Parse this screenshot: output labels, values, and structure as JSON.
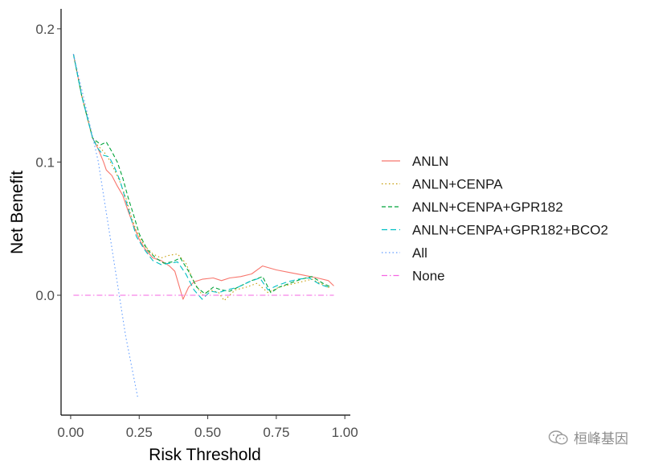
{
  "chart_data": {
    "type": "line",
    "title": "",
    "xlabel": "Risk Threshold",
    "ylabel": "Net Benefit",
    "xlim": [
      -0.035,
      1.02
    ],
    "ylim": [
      -0.09,
      0.215
    ],
    "x_ticks": [
      0.0,
      0.25,
      0.5,
      0.75,
      1.0
    ],
    "x_tick_labels": [
      "0.00",
      "0.25",
      "0.50",
      "0.75",
      "1.00"
    ],
    "y_ticks": [
      0.0,
      0.1,
      0.2
    ],
    "y_tick_labels": [
      "0.0",
      "0.1",
      "0.2"
    ],
    "grid": false,
    "legend_position": "right",
    "series": [
      {
        "name": "ANLN",
        "color": "#F8766D",
        "dash": "solid",
        "x": [
          0.01,
          0.04,
          0.08,
          0.1,
          0.12,
          0.13,
          0.15,
          0.17,
          0.19,
          0.21,
          0.23,
          0.25,
          0.27,
          0.3,
          0.33,
          0.36,
          0.38,
          0.4,
          0.41,
          0.43,
          0.45,
          0.48,
          0.52,
          0.55,
          0.58,
          0.62,
          0.66,
          0.7,
          0.75,
          0.8,
          0.85,
          0.9,
          0.94,
          0.96
        ],
        "y": [
          0.181,
          0.15,
          0.118,
          0.11,
          0.1,
          0.094,
          0.09,
          0.082,
          0.075,
          0.063,
          0.052,
          0.042,
          0.035,
          0.028,
          0.026,
          0.022,
          0.018,
          0.004,
          -0.003,
          0.006,
          0.01,
          0.012,
          0.013,
          0.011,
          0.013,
          0.014,
          0.016,
          0.022,
          0.019,
          0.017,
          0.015,
          0.013,
          0.011,
          0.007
        ]
      },
      {
        "name": "ANLN+CENPA",
        "color": "#C49A00",
        "dash": "dotted",
        "x": [
          0.01,
          0.04,
          0.08,
          0.1,
          0.12,
          0.14,
          0.16,
          0.18,
          0.2,
          0.22,
          0.24,
          0.27,
          0.3,
          0.33,
          0.36,
          0.39,
          0.42,
          0.45,
          0.48,
          0.51,
          0.54,
          0.56,
          0.6,
          0.64,
          0.68,
          0.72,
          0.76,
          0.8,
          0.84,
          0.88,
          0.92,
          0.95
        ],
        "y": [
          0.181,
          0.15,
          0.118,
          0.112,
          0.108,
          0.102,
          0.094,
          0.085,
          0.074,
          0.06,
          0.048,
          0.037,
          0.031,
          0.028,
          0.03,
          0.031,
          0.024,
          0.01,
          0.0,
          0.004,
          0.002,
          -0.004,
          0.004,
          0.006,
          0.009,
          0.002,
          0.006,
          0.008,
          0.01,
          0.012,
          0.008,
          0.005
        ]
      },
      {
        "name": "ANLN+CENPA+GPR182",
        "color": "#00A33A",
        "dash": "dashed",
        "x": [
          0.01,
          0.04,
          0.08,
          0.11,
          0.13,
          0.15,
          0.17,
          0.19,
          0.21,
          0.23,
          0.25,
          0.28,
          0.31,
          0.34,
          0.37,
          0.4,
          0.43,
          0.46,
          0.49,
          0.52,
          0.55,
          0.58,
          0.62,
          0.66,
          0.7,
          0.73,
          0.76,
          0.8,
          0.84,
          0.88,
          0.92,
          0.95
        ],
        "y": [
          0.181,
          0.15,
          0.118,
          0.113,
          0.115,
          0.108,
          0.1,
          0.088,
          0.073,
          0.06,
          0.046,
          0.034,
          0.028,
          0.024,
          0.025,
          0.028,
          0.018,
          0.006,
          0.001,
          0.006,
          0.004,
          0.003,
          0.007,
          0.011,
          0.014,
          0.002,
          0.006,
          0.009,
          0.012,
          0.014,
          0.009,
          0.006
        ]
      },
      {
        "name": "ANLN+CENPA+GPR182+BCO2",
        "color": "#00BFC4",
        "dash": "longdash",
        "x": [
          0.01,
          0.04,
          0.08,
          0.1,
          0.12,
          0.14,
          0.16,
          0.18,
          0.2,
          0.22,
          0.24,
          0.27,
          0.3,
          0.33,
          0.36,
          0.39,
          0.42,
          0.45,
          0.48,
          0.51,
          0.54,
          0.57,
          0.61,
          0.65,
          0.69,
          0.72,
          0.75,
          0.79,
          0.83,
          0.87,
          0.91,
          0.94
        ],
        "y": [
          0.181,
          0.15,
          0.118,
          0.11,
          0.105,
          0.104,
          0.096,
          0.086,
          0.072,
          0.058,
          0.044,
          0.034,
          0.026,
          0.023,
          0.024,
          0.025,
          0.016,
          0.004,
          -0.003,
          0.003,
          0.002,
          0.004,
          0.006,
          0.01,
          0.013,
          0.004,
          0.007,
          0.01,
          0.012,
          0.013,
          0.008,
          0.006
        ]
      },
      {
        "name": "All",
        "color": "#619CFF",
        "dash": "dotted",
        "x": [
          0.01,
          0.05,
          0.1,
          0.15,
          0.2,
          0.245
        ],
        "y": [
          0.181,
          0.146,
          0.101,
          0.036,
          -0.03,
          -0.077
        ]
      },
      {
        "name": "None",
        "color": "#F564E3",
        "dash": "dotdash",
        "x": [
          0.01,
          0.96
        ],
        "y": [
          0.0,
          0.0
        ]
      }
    ]
  },
  "watermark": {
    "text": "桓峰基因",
    "icon": "wechat-icon",
    "color": "#8c8c8c"
  }
}
